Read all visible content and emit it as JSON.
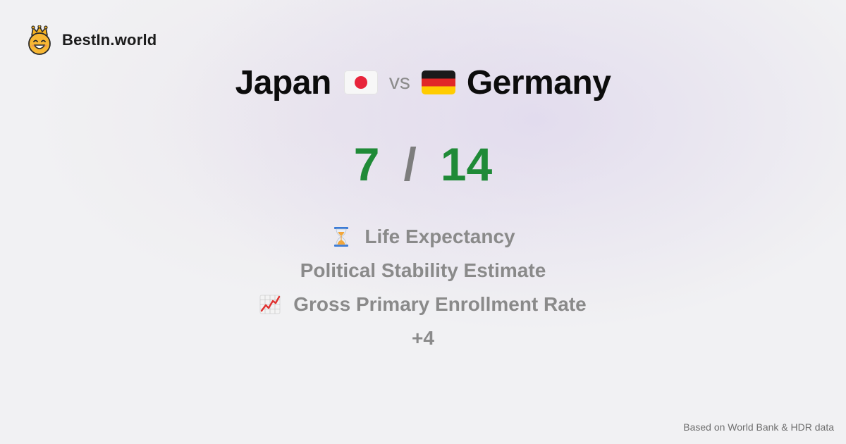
{
  "brand": {
    "name": "BestIn.world",
    "logo_icon": "smiling-crown-face-icon"
  },
  "comparison": {
    "left": {
      "country": "Japan",
      "flag_icon": "japan-flag-icon",
      "score": "7"
    },
    "vs_label": "vs",
    "right": {
      "country": "Germany",
      "flag_icon": "germany-flag-icon",
      "score": "14"
    },
    "score_separator": "/"
  },
  "metrics": [
    {
      "label": "Life Expectancy",
      "icon": "hourglass-icon"
    },
    {
      "label": "Political Stability Estimate",
      "icon": ""
    },
    {
      "label": "Gross Primary Enrollment Rate",
      "icon": "chart-increasing-icon"
    }
  ],
  "more_label": "+4",
  "footer": {
    "source_note": "Based on World Bank & HDR data"
  },
  "colors": {
    "score_green": "#1f8a37",
    "muted_text": "#8a8a8a",
    "background": "#f1f1f3"
  }
}
